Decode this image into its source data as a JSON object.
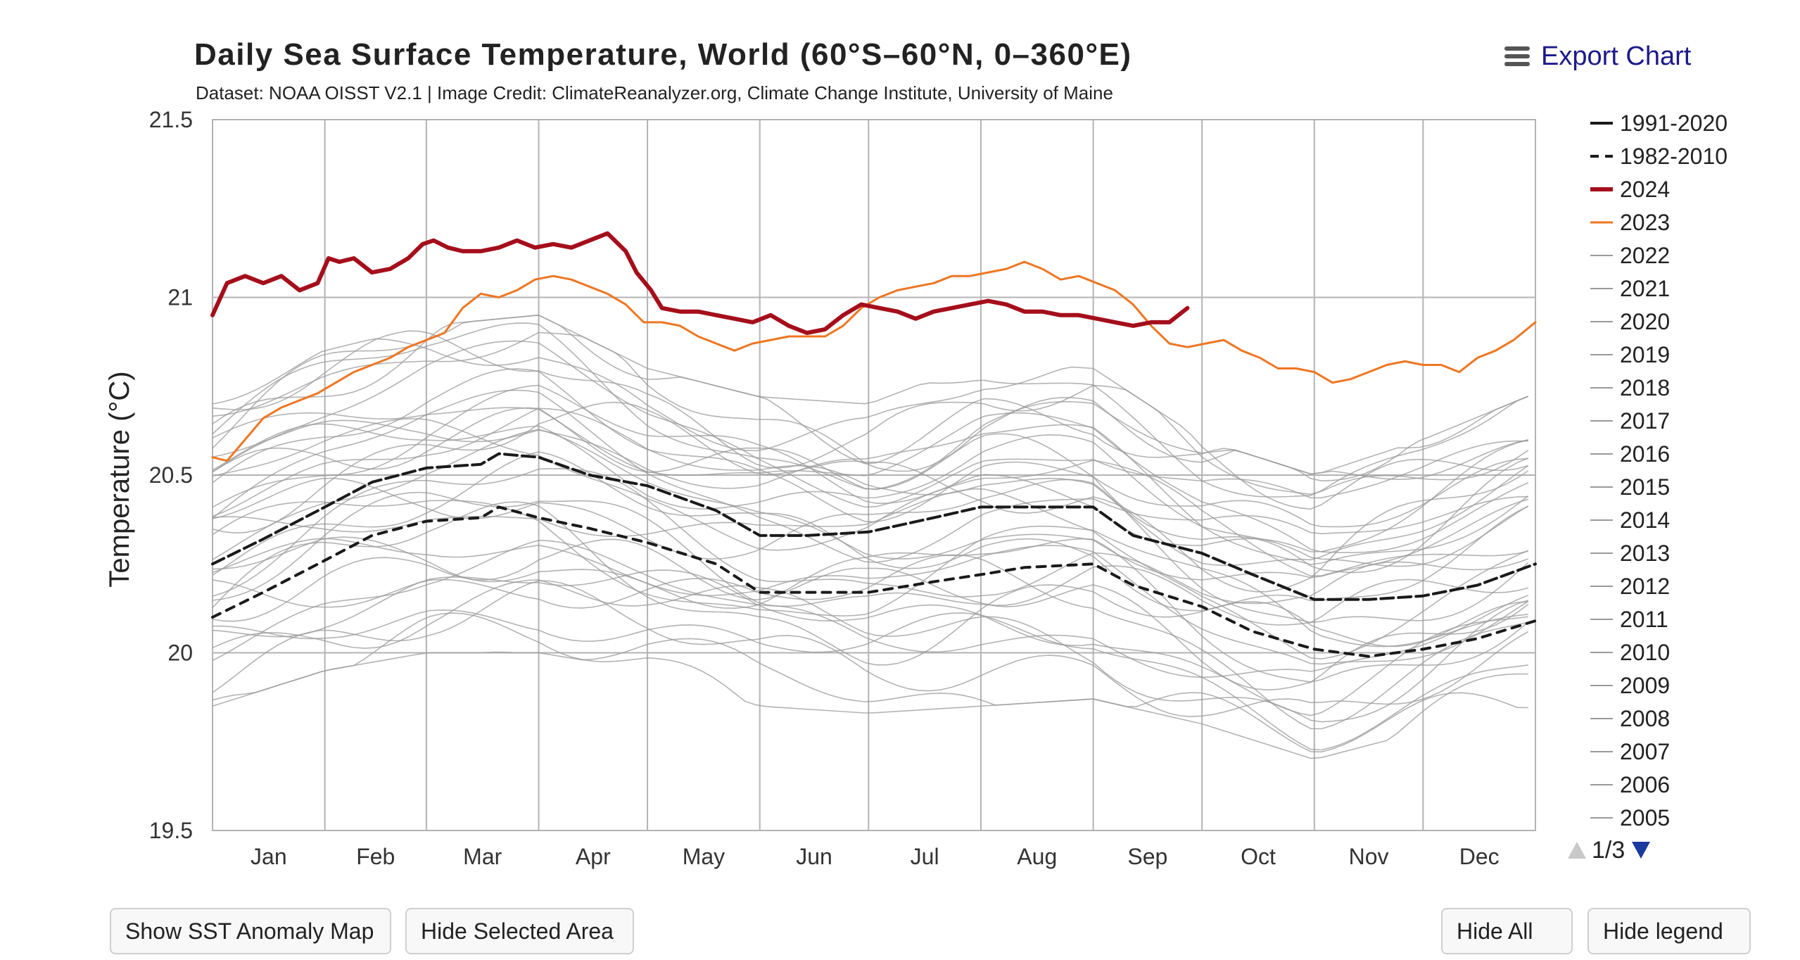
{
  "header": {
    "title": "Daily Sea Surface Temperature, World (60°S–60°N, 0–360°E)",
    "subtitle": "Dataset: NOAA OISST V2.1 | Image Credit: ClimateReanalyzer.org, Climate Change Institute, University of Maine",
    "export_label": "Export Chart"
  },
  "buttons": {
    "anomaly_map": "Show SST Anomaly Map",
    "hide_selected": "Hide Selected Area",
    "hide_all": "Hide All",
    "hide_legend": "Hide legend"
  },
  "legend_pager": {
    "text": "1/3"
  },
  "colors": {
    "y2024": "#a50e1b",
    "y2023": "#ee7622",
    "climatology": "#1a1a1a",
    "past_years": "#9a9a9a",
    "grid": "#b3b3b3",
    "pager_active": "#1a3aa0"
  },
  "chart_data": {
    "type": "line",
    "title": "Daily Sea Surface Temperature, World (60°S–60°N, 0–360°E)",
    "xlabel": "",
    "ylabel": "Temperature (°C)",
    "ylim": [
      19.5,
      21.5
    ],
    "y_ticks": [
      19.5,
      20,
      20.5,
      21,
      21.5
    ],
    "x_unit": "day of year",
    "xlim": [
      1,
      366
    ],
    "x_months": [
      "Jan",
      "Feb",
      "Mar",
      "Apr",
      "May",
      "Jun",
      "Jul",
      "Aug",
      "Sep",
      "Oct",
      "Nov",
      "Dec"
    ],
    "x_month_boundaries": [
      1,
      32,
      60,
      91,
      121,
      152,
      182,
      213,
      244,
      274,
      305,
      335,
      366
    ],
    "legend_position": "right",
    "series": [
      {
        "name": "1991-2020",
        "style": "solid-black",
        "x": [
          1,
          15,
          32,
          45,
          60,
          75,
          80,
          91,
          105,
          121,
          140,
          152,
          165,
          182,
          200,
          213,
          225,
          244,
          255,
          274,
          288,
          305,
          320,
          335,
          350,
          366
        ],
        "y": [
          20.25,
          20.32,
          20.41,
          20.48,
          20.52,
          20.53,
          20.56,
          20.55,
          20.5,
          20.47,
          20.4,
          20.33,
          20.33,
          20.34,
          20.38,
          20.41,
          20.41,
          20.41,
          20.33,
          20.28,
          20.22,
          20.15,
          20.15,
          20.16,
          20.19,
          20.25
        ]
      },
      {
        "name": "1982-2010",
        "style": "dashed-black",
        "x": [
          1,
          15,
          32,
          45,
          60,
          75,
          80,
          91,
          105,
          121,
          140,
          152,
          165,
          182,
          200,
          213,
          225,
          244,
          255,
          274,
          288,
          305,
          320,
          335,
          350,
          366
        ],
        "y": [
          20.1,
          20.17,
          20.26,
          20.33,
          20.37,
          20.38,
          20.41,
          20.38,
          20.35,
          20.31,
          20.25,
          20.17,
          20.17,
          20.17,
          20.2,
          20.22,
          20.24,
          20.25,
          20.19,
          20.13,
          20.06,
          20.01,
          19.99,
          20.01,
          20.04,
          20.09
        ]
      },
      {
        "name": "2024",
        "style": "bold-red",
        "x": [
          1,
          5,
          10,
          15,
          20,
          25,
          30,
          33,
          36,
          40,
          45,
          50,
          55,
          59,
          62,
          66,
          70,
          75,
          80,
          85,
          90,
          95,
          100,
          105,
          110,
          115,
          118,
          122,
          125,
          130,
          135,
          140,
          145,
          150,
          155,
          160,
          165,
          170,
          175,
          180,
          185,
          190,
          195,
          200,
          205,
          210,
          215,
          220,
          225,
          230,
          235,
          240,
          245,
          250,
          255,
          260,
          265,
          270
        ],
        "y": [
          20.95,
          21.04,
          21.06,
          21.04,
          21.06,
          21.02,
          21.04,
          21.11,
          21.1,
          21.11,
          21.07,
          21.08,
          21.11,
          21.15,
          21.16,
          21.14,
          21.13,
          21.13,
          21.14,
          21.16,
          21.14,
          21.15,
          21.14,
          21.16,
          21.18,
          21.13,
          21.07,
          21.02,
          20.97,
          20.96,
          20.96,
          20.95,
          20.94,
          20.93,
          20.95,
          20.92,
          20.9,
          20.91,
          20.95,
          20.98,
          20.97,
          20.96,
          20.94,
          20.96,
          20.97,
          20.98,
          20.99,
          20.98,
          20.96,
          20.96,
          20.95,
          20.95,
          20.94,
          20.93,
          20.92,
          20.93,
          20.93,
          20.97
        ]
      },
      {
        "name": "2023",
        "style": "orange",
        "x": [
          1,
          5,
          10,
          15,
          20,
          25,
          30,
          35,
          40,
          45,
          50,
          55,
          60,
          65,
          70,
          75,
          80,
          85,
          90,
          95,
          100,
          105,
          110,
          115,
          120,
          125,
          130,
          135,
          140,
          145,
          150,
          155,
          160,
          165,
          170,
          175,
          180,
          185,
          190,
          195,
          200,
          205,
          210,
          215,
          220,
          225,
          230,
          235,
          240,
          245,
          250,
          255,
          260,
          265,
          270,
          275,
          280,
          285,
          290,
          295,
          300,
          305,
          310,
          315,
          320,
          325,
          330,
          335,
          340,
          345,
          350,
          355,
          360,
          366
        ],
        "y": [
          20.55,
          20.54,
          20.6,
          20.66,
          20.69,
          20.71,
          20.73,
          20.76,
          20.79,
          20.81,
          20.83,
          20.86,
          20.88,
          20.9,
          20.97,
          21.01,
          21.0,
          21.02,
          21.05,
          21.06,
          21.05,
          21.03,
          21.01,
          20.98,
          20.93,
          20.93,
          20.92,
          20.89,
          20.87,
          20.85,
          20.87,
          20.88,
          20.89,
          20.89,
          20.89,
          20.92,
          20.97,
          21.0,
          21.02,
          21.03,
          21.04,
          21.06,
          21.06,
          21.07,
          21.08,
          21.1,
          21.08,
          21.05,
          21.06,
          21.04,
          21.02,
          20.98,
          20.92,
          20.87,
          20.86,
          20.87,
          20.88,
          20.85,
          20.83,
          20.8,
          20.8,
          20.79,
          20.76,
          20.77,
          20.79,
          20.81,
          20.82,
          20.81,
          20.81,
          20.79,
          20.83,
          20.85,
          20.88,
          20.93
        ]
      }
    ],
    "legend_entries": [
      {
        "label": "1991-2020",
        "style": "solid-black"
      },
      {
        "label": "1982-2010",
        "style": "dashed-black"
      },
      {
        "label": "2024",
        "style": "bold-red"
      },
      {
        "label": "2023",
        "style": "orange"
      },
      {
        "label": "2022",
        "style": "gray"
      },
      {
        "label": "2021",
        "style": "gray"
      },
      {
        "label": "2020",
        "style": "gray"
      },
      {
        "label": "2019",
        "style": "gray"
      },
      {
        "label": "2018",
        "style": "gray"
      },
      {
        "label": "2017",
        "style": "gray"
      },
      {
        "label": "2016",
        "style": "gray"
      },
      {
        "label": "2015",
        "style": "gray"
      },
      {
        "label": "2014",
        "style": "gray"
      },
      {
        "label": "2013",
        "style": "gray"
      },
      {
        "label": "2012",
        "style": "gray"
      },
      {
        "label": "2011",
        "style": "gray"
      },
      {
        "label": "2010",
        "style": "gray"
      },
      {
        "label": "2009",
        "style": "gray"
      },
      {
        "label": "2008",
        "style": "gray"
      },
      {
        "label": "2007",
        "style": "gray"
      },
      {
        "label": "2006",
        "style": "gray"
      },
      {
        "label": "2005",
        "style": "gray"
      }
    ],
    "past_years_band": {
      "description": "1981-2022 individual years drawn as thin gray lines (approximate envelope)",
      "x": [
        1,
        32,
        60,
        91,
        121,
        152,
        182,
        213,
        244,
        274,
        305,
        335,
        366
      ],
      "low": [
        19.85,
        19.95,
        20.0,
        20.0,
        19.95,
        19.85,
        19.83,
        19.85,
        19.87,
        19.8,
        19.7,
        19.78,
        19.85
      ],
      "high": [
        20.75,
        20.85,
        20.92,
        20.95,
        20.8,
        20.72,
        20.7,
        20.82,
        20.8,
        20.6,
        20.5,
        20.6,
        20.73
      ]
    }
  }
}
